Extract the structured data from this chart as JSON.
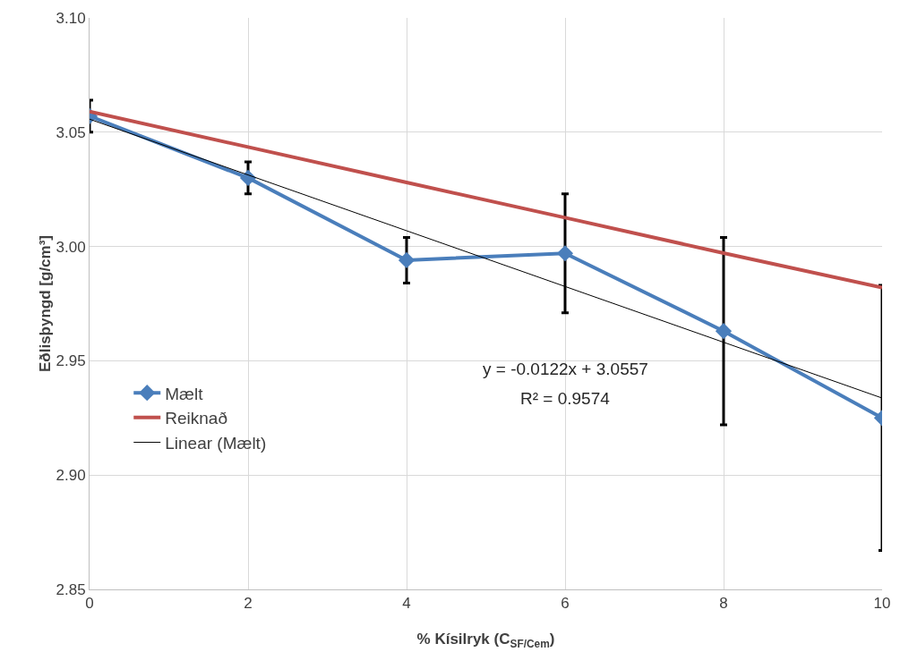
{
  "chart_data": {
    "type": "line",
    "xlabel": "% Kísilryk (C$_{SF/Cem}$)",
    "ylabel": "Eðlisþyngd [g/cm³]",
    "x": [
      0,
      2,
      4,
      6,
      8,
      10
    ],
    "xlim": [
      0,
      10
    ],
    "xticks": [
      0,
      2,
      4,
      6,
      8,
      10
    ],
    "ylim": [
      2.85,
      3.1
    ],
    "yticks": [
      {
        "value": 2.85,
        "label": "2.85"
      },
      {
        "value": 2.9,
        "label": "2.90"
      },
      {
        "value": 2.95,
        "label": "2.95"
      },
      {
        "value": 3.0,
        "label": "3.00"
      },
      {
        "value": 3.05,
        "label": "3.05"
      },
      {
        "value": 3.1,
        "label": "3.10"
      }
    ],
    "grid": true,
    "legend": "left",
    "series": [
      {
        "name": "Mælt",
        "color": "#4a7ebb",
        "marker": "diamond",
        "values": [
          3.057,
          3.03,
          2.994,
          2.997,
          2.963,
          2.925
        ],
        "errors": [
          0.007,
          0.007,
          0.01,
          0.026,
          0.041,
          0.058
        ]
      },
      {
        "name": "Reiknað",
        "color": "#c0504d",
        "marker": "none",
        "values": [
          3.059,
          3.0435,
          3.028,
          3.0126,
          2.9971,
          2.982
        ]
      },
      {
        "name": "Linear (Mælt)",
        "color": "#000000",
        "marker": "none",
        "type": "line",
        "x": [
          0,
          10
        ],
        "values": [
          3.0557,
          2.9337
        ]
      }
    ],
    "annotations": [
      "y = -0.0122x + 3.0557",
      "R² = 0.9574"
    ]
  }
}
